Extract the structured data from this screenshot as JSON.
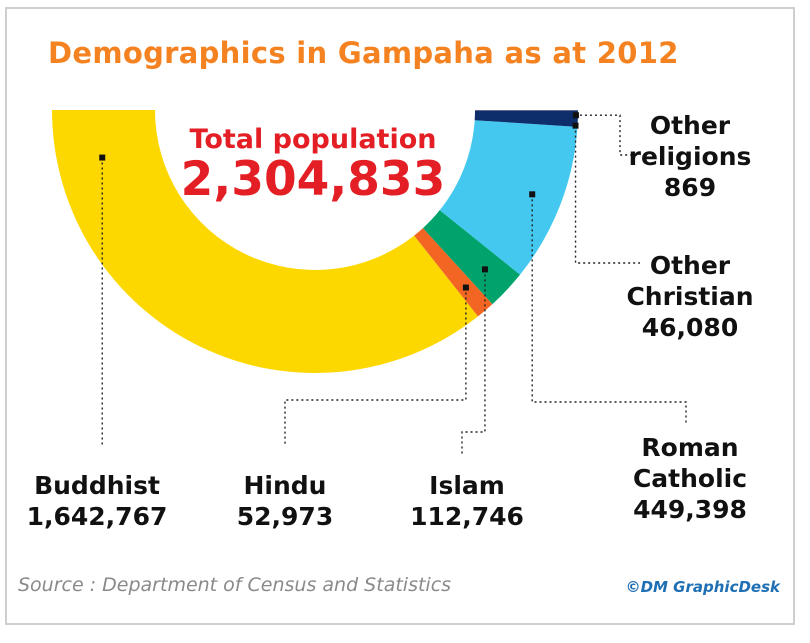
{
  "chart_data": {
    "type": "half-donut",
    "title": "Demographics in Gampaha as at 2012",
    "total_text": "Total population",
    "total": {
      "value": 2304833,
      "label": "2,304,833"
    },
    "categories": [
      "Buddhist",
      "Hindu",
      "Islam",
      "Roman Catholic",
      "Other Christian",
      "Other religions"
    ],
    "values": [
      1642767,
      52973,
      112746,
      449398,
      46080,
      869
    ],
    "value_labels": [
      "1,642,767",
      "52,973",
      "112,746",
      "449,398",
      "46,080",
      "869"
    ],
    "colors": [
      "#fdd800",
      "#f26522",
      "#00a36c",
      "#45c8f0",
      "#0d2d6b",
      "#f4a7a0"
    ],
    "source": "Source : Department of Census and Statistics",
    "credit": "©DM GraphicDesk"
  }
}
